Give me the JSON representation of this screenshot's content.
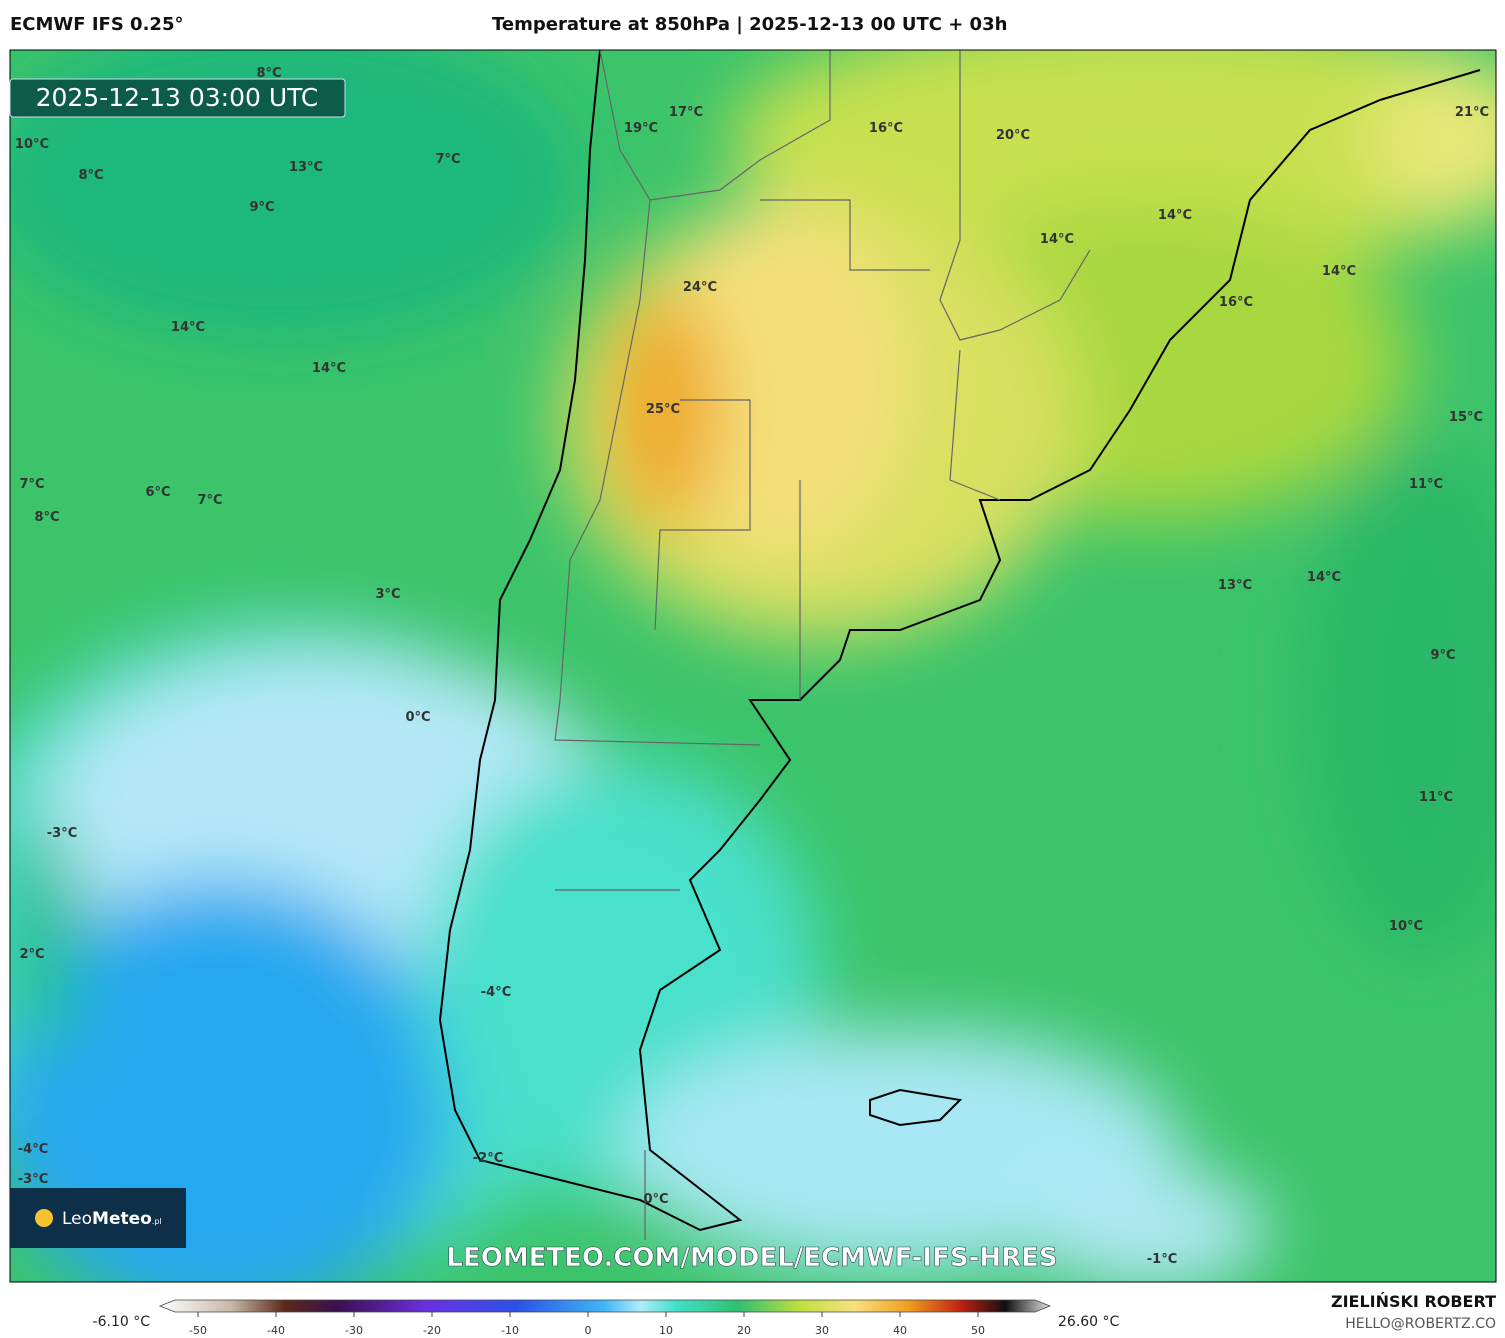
{
  "header": {
    "model": "ECMWF IFS 0.25°",
    "title": "Temperature at 850hPa | 2025-12-13 00 UTC + 03h"
  },
  "map": {
    "timestamp": "2025-12-13 03:00 UTC",
    "watermark": "LEOMETEO.COM/MODEL/ECMWF-IFS-HRES",
    "logo": {
      "name_light": "Leo",
      "name_bold": "Meteo",
      "suffix": ".pl"
    },
    "labels": [
      "8°C",
      "10°C",
      "8°C",
      "13°C",
      "7°C",
      "9°C",
      "19°C",
      "17°C",
      "16°C",
      "20°C",
      "21°C",
      "14°C",
      "14°C",
      "14°C",
      "24°C",
      "16°C",
      "14°C",
      "14°C",
      "25°C",
      "15°C",
      "7°C",
      "6°C",
      "7°C",
      "8°C",
      "11°C",
      "3°C",
      "13°C",
      "14°C",
      "9°C",
      "0°C",
      "11°C",
      "-3°C",
      "10°C",
      "2°C",
      "-4°C",
      "-4°C",
      "-3°C",
      "-2°C",
      "0°C",
      "-1°C"
    ]
  },
  "colorbar": {
    "min_label": "-6.10 °C",
    "max_label": "26.60 °C",
    "ticks": [
      -50,
      -40,
      -30,
      -20,
      -10,
      0,
      10,
      20,
      30,
      40,
      50
    ]
  },
  "footer": {
    "author": "ZIELIŃSKI ROBERT",
    "contact": "HELLO@ROBERTZ.CO"
  }
}
